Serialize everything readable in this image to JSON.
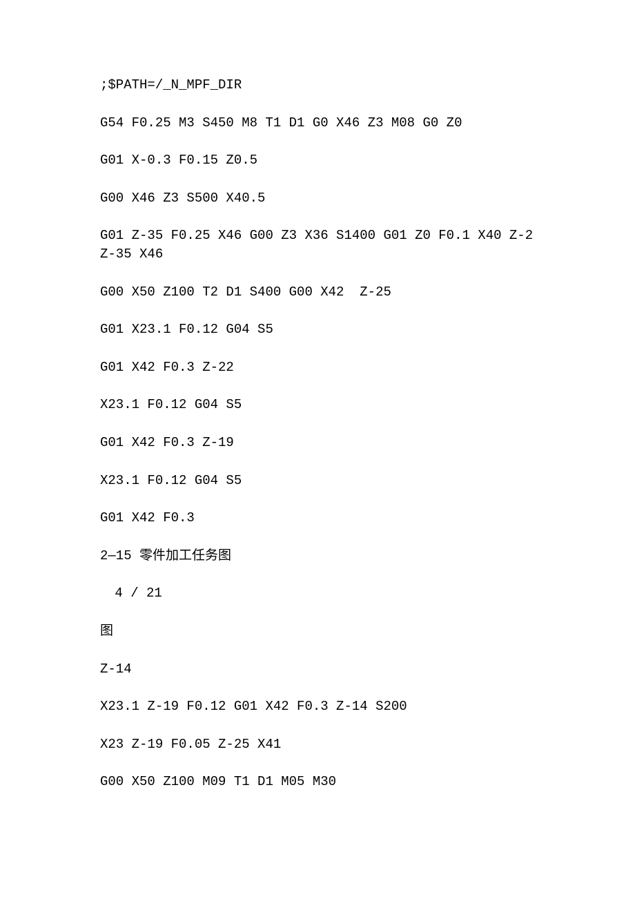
{
  "lines": [
    {
      "text": ";$PATH=/_N_MPF_DIR",
      "cls": ""
    },
    {
      "text": "G54 F0.25 M3 S450 M8 T1 D1 G0 X46 Z3 M08 G0 Z0",
      "cls": ""
    },
    {
      "text": "G01 X-0.3 F0.15 Z0.5",
      "cls": ""
    },
    {
      "text": "G00 X46 Z3 S500 X40.5",
      "cls": ""
    },
    {
      "text": "G01 Z-35 F0.25 X46 G00 Z3 X36 S1400 G01 Z0 F0.1 X40 Z-2 Z-35 X46",
      "cls": ""
    },
    {
      "text": "G00 X50 Z100 T2 D1 S400 G00 X42  Z-25",
      "cls": ""
    },
    {
      "text": "G01 X23.1 F0.12 G04 S5",
      "cls": ""
    },
    {
      "text": "G01 X42 F0.3 Z-22",
      "cls": ""
    },
    {
      "text": "X23.1 F0.12 G04 S5",
      "cls": ""
    },
    {
      "text": "G01 X42 F0.3 Z-19",
      "cls": ""
    },
    {
      "text": "X23.1 F0.12 G04 S5",
      "cls": ""
    },
    {
      "text": "G01 X42 F0.3",
      "cls": ""
    },
    {
      "text": "2—15 零件加工任务图",
      "cls": ""
    },
    {
      "text": " 4 / 21",
      "cls": "indent"
    },
    {
      "text": "图",
      "cls": ""
    },
    {
      "text": "Z-14",
      "cls": ""
    },
    {
      "text": "X23.1 Z-19 F0.12 G01 X42 F0.3 Z-14 S200",
      "cls": ""
    },
    {
      "text": "X23 Z-19 F0.05 Z-25 X41",
      "cls": ""
    },
    {
      "text": "G00 X50 Z100 M09 T1 D1 M05 M30",
      "cls": ""
    }
  ]
}
